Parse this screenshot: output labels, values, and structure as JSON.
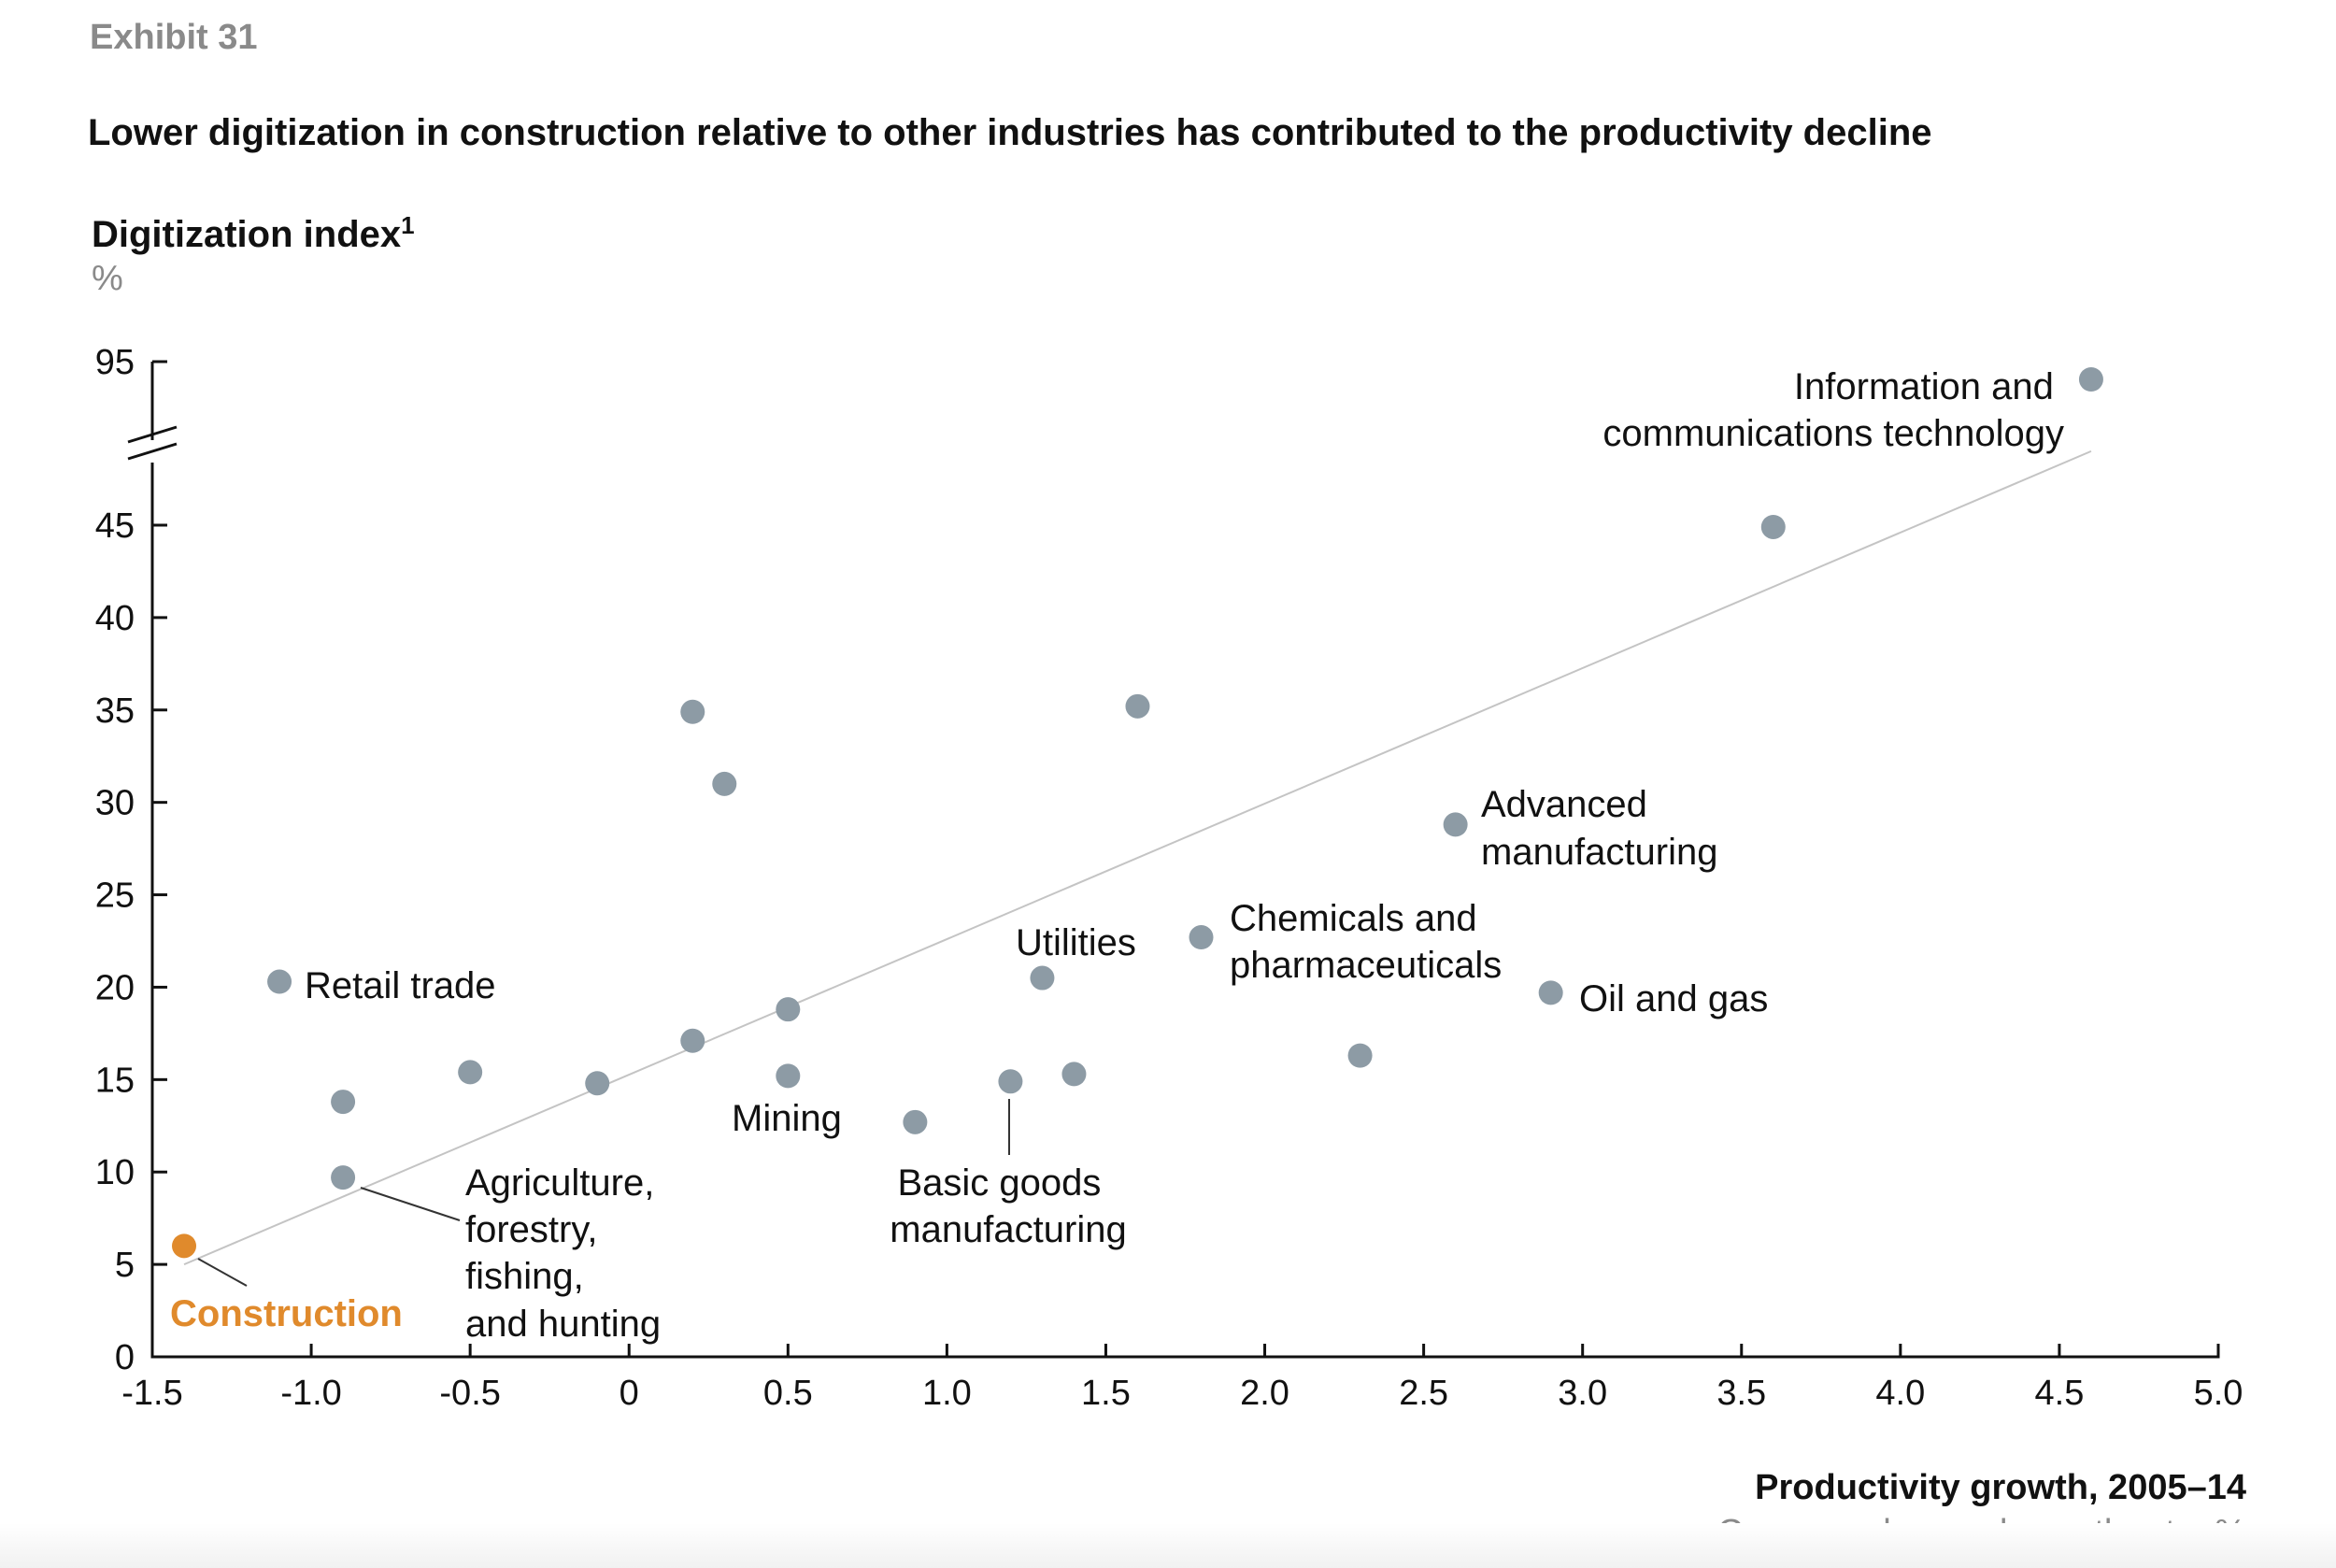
{
  "exhibit": "Exhibit 31",
  "title": "Lower digitization in construction relative to other industries has contributed to the productivity decline",
  "colors": {
    "point": "#8d9ba5",
    "highlight": "#e08a2c",
    "highlight_text": "#e08a2c"
  },
  "chart_data": {
    "type": "scatter",
    "ylabel": "Digitization index",
    "ylabel_footnote": "1",
    "yunit": "%",
    "xlabel": "Productivity growth, 2005–14",
    "xlabel_sub": "Compound annual growth rate, %",
    "xlim": [
      -1.5,
      5.0
    ],
    "ylim": [
      0,
      45
    ],
    "y_axis_break": true,
    "y_break_top_tick": 95,
    "x_ticks": [
      "-1.5",
      "-1.0",
      "-0.5",
      "0",
      "0.5",
      "1.0",
      "1.5",
      "2.0",
      "2.5",
      "3.0",
      "3.5",
      "4.0",
      "4.5",
      "5.0"
    ],
    "y_ticks": [
      "0",
      "5",
      "10",
      "15",
      "20",
      "25",
      "30",
      "35",
      "40",
      "45",
      "95"
    ],
    "trendline": {
      "from": [
        -1.4,
        5
      ],
      "to": [
        4.6,
        49
      ]
    },
    "points": [
      {
        "x": -1.4,
        "y": 6.0,
        "label": "Construction",
        "highlight": true
      },
      {
        "x": -1.1,
        "y": 20.3,
        "label": "Retail trade"
      },
      {
        "x": -0.9,
        "y": 13.8
      },
      {
        "x": -0.9,
        "y": 9.7,
        "label": "Agriculture, forestry, fishing, and hunting"
      },
      {
        "x": -0.5,
        "y": 15.4
      },
      {
        "x": -0.1,
        "y": 14.8
      },
      {
        "x": 0.2,
        "y": 34.9
      },
      {
        "x": 0.3,
        "y": 31.0
      },
      {
        "x": 0.2,
        "y": 17.1
      },
      {
        "x": 0.5,
        "y": 18.8
      },
      {
        "x": 0.5,
        "y": 15.2,
        "label": "Mining"
      },
      {
        "x": 0.9,
        "y": 12.7
      },
      {
        "x": 1.2,
        "y": 14.9,
        "label": "Basic goods manufacturing"
      },
      {
        "x": 1.3,
        "y": 20.5,
        "label": "Utilities"
      },
      {
        "x": 1.4,
        "y": 15.3
      },
      {
        "x": 1.6,
        "y": 35.2
      },
      {
        "x": 1.8,
        "y": 22.7,
        "label": "Chemicals and pharmaceuticals"
      },
      {
        "x": 2.3,
        "y": 16.3
      },
      {
        "x": 2.6,
        "y": 28.8,
        "label": "Advanced manufacturing"
      },
      {
        "x": 2.9,
        "y": 19.7,
        "label": "Oil and gas"
      },
      {
        "x": 3.6,
        "y": 44.9
      },
      {
        "x": 4.6,
        "y": 93,
        "label": "Information and communications technology"
      }
    ]
  },
  "labels": {
    "construction": "Construction",
    "retail": "Retail trade",
    "agriculture": [
      "Agriculture,",
      "forestry,",
      "fishing,",
      "and hunting"
    ],
    "mining": "Mining",
    "basic_goods": [
      "Basic goods",
      "manufacturing"
    ],
    "utilities": "Utilities",
    "chemicals": [
      "Chemicals and",
      "pharmaceuticals"
    ],
    "advanced": [
      "Advanced",
      "manufacturing"
    ],
    "oil": "Oil and gas",
    "ict": [
      "Information and",
      "communications technology"
    ]
  }
}
